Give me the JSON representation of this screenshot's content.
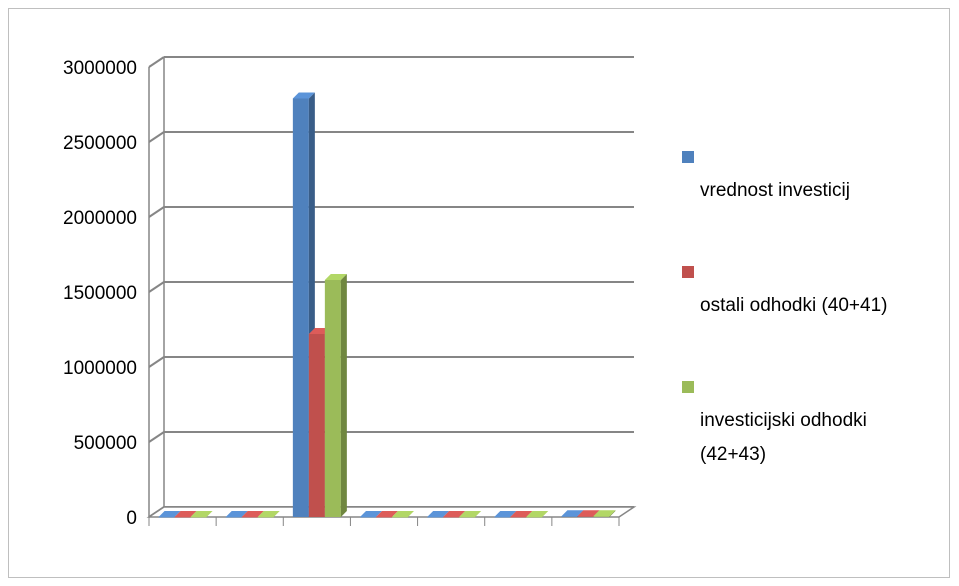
{
  "chart_data": {
    "type": "bar",
    "title": "",
    "xlabel": "",
    "ylabel": "",
    "categories": [
      "",
      "",
      "",
      "",
      "",
      "",
      ""
    ],
    "series": [
      {
        "name": "vrednost investicij",
        "color": "#4f81bd",
        "values": [
          0,
          0,
          2790000,
          0,
          0,
          0,
          5000
        ]
      },
      {
        "name": "ostali odhodki (40+41)",
        "color": "#c0504d",
        "values": [
          0,
          0,
          1220000,
          0,
          0,
          0,
          5000
        ]
      },
      {
        "name": "investicijski odhodki (42+43)",
        "color": "#9bbb59",
        "values": [
          0,
          0,
          1580000,
          0,
          0,
          0,
          5000
        ]
      }
    ],
    "ylim": [
      0,
      3000000
    ],
    "yticks": [
      "0",
      "500000",
      "1000000",
      "1500000",
      "2000000",
      "2500000",
      "3000000"
    ],
    "grid": true,
    "legend": "right",
    "chart_style": "3d-clustered-column"
  }
}
